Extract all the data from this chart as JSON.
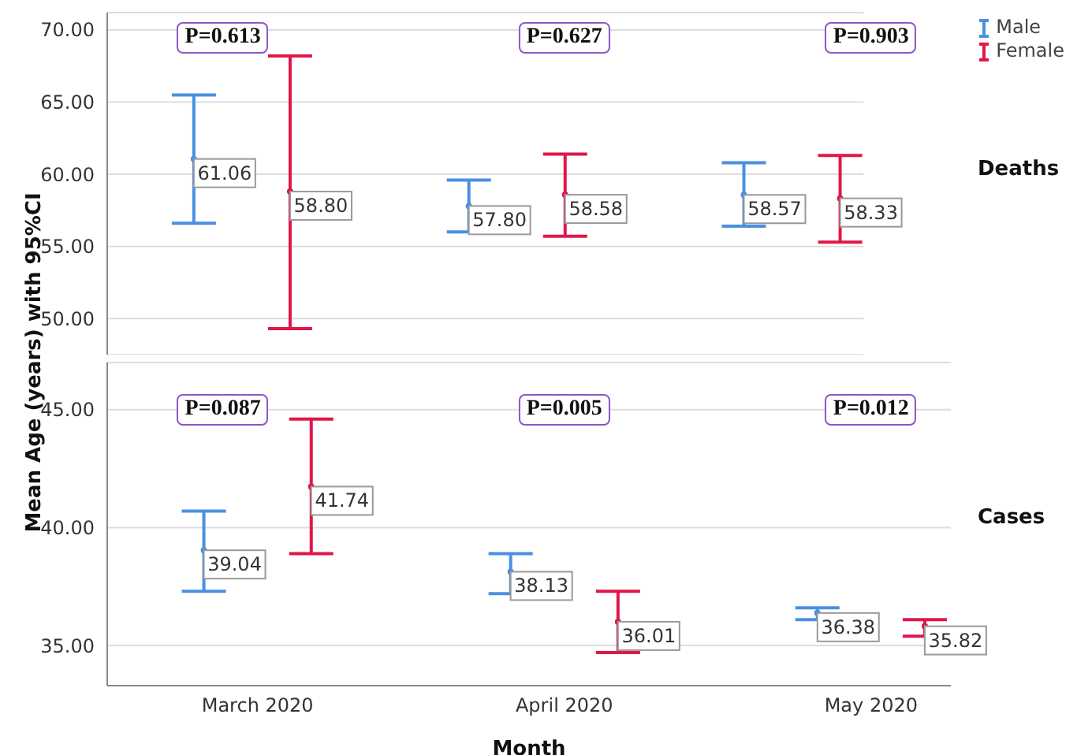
{
  "chart_data": [
    {
      "type": "scatter",
      "categories": [
        null,
        null,
        null
      ],
      "ylim": [
        47.5,
        71.2
      ],
      "yticks": [
        {
          "value": 50,
          "label": "50.00"
        },
        {
          "value": 55,
          "label": "55.00"
        },
        {
          "value": 60,
          "label": "60.00"
        },
        {
          "value": 65,
          "label": "65.00"
        },
        {
          "value": 70,
          "label": "70.00"
        }
      ],
      "grid": "y",
      "legend": "top right",
      "tick_labels": "y",
      "marker": "circle",
      "series": [
        {
          "name": "Male",
          "color": "#4a90e2",
          "values": [
            61.06,
            57.8,
            58.57
          ],
          "errors": [
            [
              56.6,
              65.5
            ],
            [
              56.0,
              59.6
            ],
            [
              56.4,
              60.8
            ]
          ],
          "value_labels": [
            "61.06",
            "57.80",
            "58.57"
          ]
        },
        {
          "name": "Female",
          "color": "#e0174a",
          "values": [
            58.8,
            58.58,
            58.33
          ],
          "errors": [
            [
              49.3,
              68.2
            ],
            [
              55.7,
              61.4
            ],
            [
              55.3,
              61.3
            ]
          ],
          "value_labels": [
            "58.80",
            "58.58",
            "58.33"
          ]
        }
      ],
      "annotations": [
        "P=0.613",
        "P=0.627",
        "P=0.903",
        "Deaths"
      ]
    },
    {
      "type": "scatter",
      "xlabel": "Month",
      "ylabel": "Mean Age (years) with 95%CI",
      "categories": [
        "March 2020",
        "April 2020",
        "May 2020"
      ],
      "ylim": [
        33.3,
        47
      ],
      "yticks": [
        {
          "value": 35,
          "label": "35.00"
        },
        {
          "value": 40,
          "label": "40.00"
        },
        {
          "value": 45,
          "label": "45.00"
        }
      ],
      "grid": "y",
      "marker": "circle",
      "series": [
        {
          "color": "#4a90e2",
          "values": [
            39.04,
            38.13,
            36.38
          ],
          "errors": [
            [
              37.3,
              40.7
            ],
            [
              37.2,
              38.9
            ],
            [
              36.1,
              36.6
            ]
          ],
          "value_labels": [
            "39.04",
            "38.13",
            "36.38"
          ]
        },
        {
          "color": "#e0174a",
          "values": [
            41.74,
            36.01,
            35.82
          ],
          "errors": [
            [
              38.9,
              44.6
            ],
            [
              34.7,
              37.3
            ],
            [
              35.4,
              36.1
            ]
          ],
          "value_labels": [
            "41.74",
            "36.01",
            "35.82"
          ]
        }
      ],
      "annotations": [
        "P=0.087",
        "P=0.005",
        "P=0.012",
        "Cases"
      ]
    }
  ]
}
